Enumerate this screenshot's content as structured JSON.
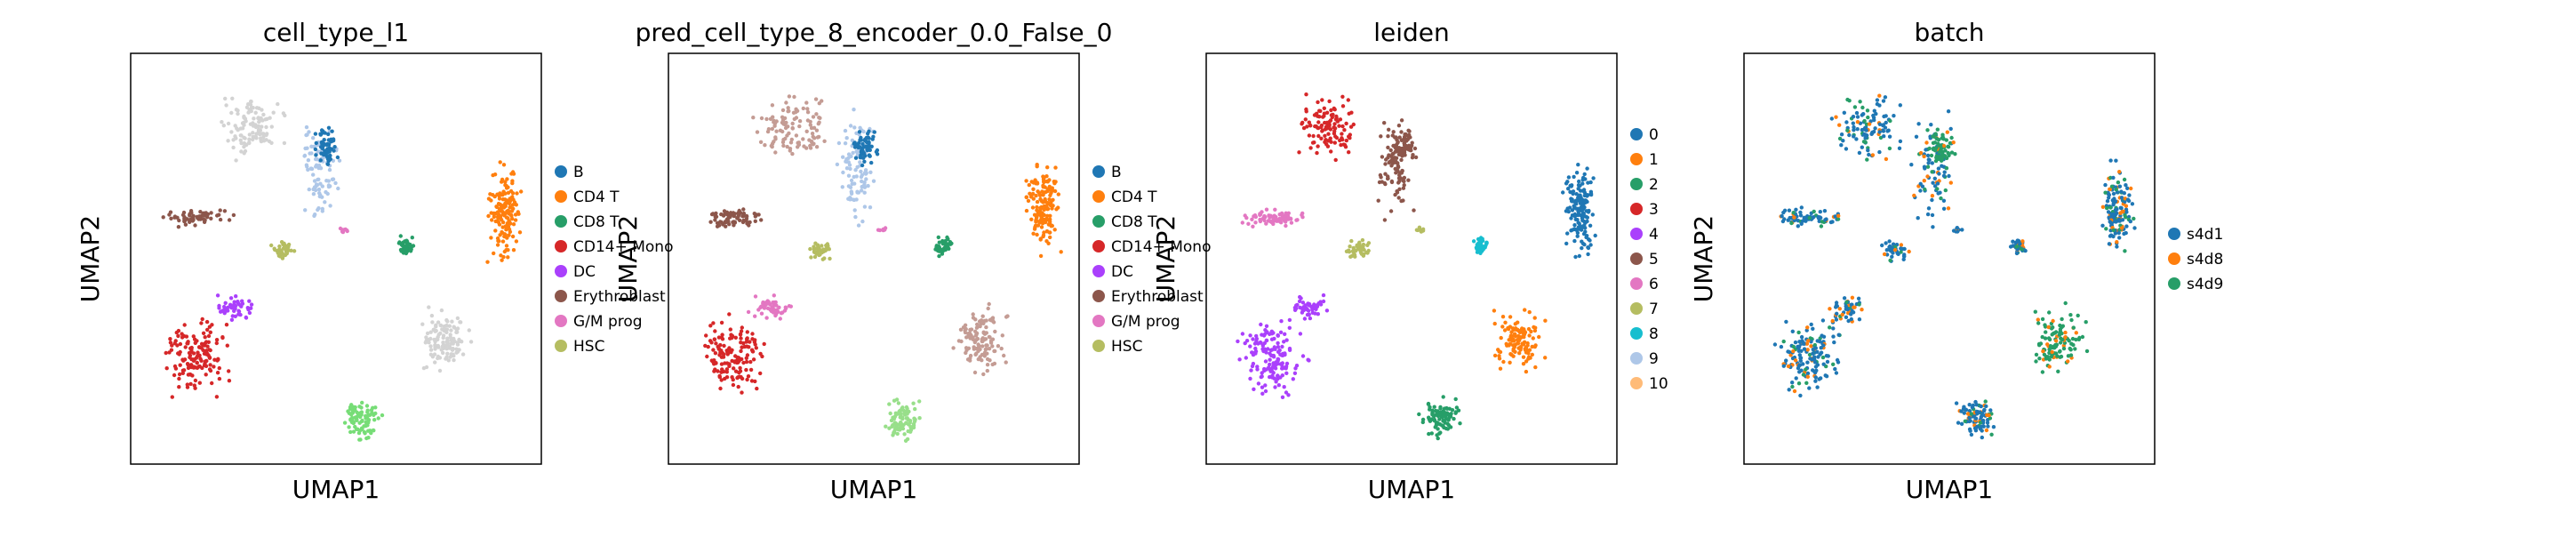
{
  "chart_data": [
    {
      "type": "scatter",
      "title": "cell_type_l1",
      "xlabel": "UMAP1",
      "ylabel": "UMAP2",
      "legend": "right",
      "grid": false,
      "legend_entries": [
        {
          "label": "B",
          "color": "#1f77b4"
        },
        {
          "label": "CD4 T",
          "color": "#ff7f0e"
        },
        {
          "label": "CD8 T",
          "color": "#279e68"
        },
        {
          "label": "CD14+ Mono",
          "color": "#d62728"
        },
        {
          "label": "DC",
          "color": "#aa40fc"
        },
        {
          "label": "Erythroblast",
          "color": "#8c564b"
        },
        {
          "label": "G/M prog",
          "color": "#e377c2"
        },
        {
          "label": "HSC",
          "color": "#b5bd61"
        }
      ]
    },
    {
      "type": "scatter",
      "title": "pred_cell_type_8_encoder_0.0_False_0",
      "xlabel": "UMAP1",
      "ylabel": "UMAP2",
      "legend": "right",
      "grid": false,
      "legend_entries": [
        {
          "label": "B",
          "color": "#1f77b4"
        },
        {
          "label": "CD4 T",
          "color": "#ff7f0e"
        },
        {
          "label": "CD8 T",
          "color": "#279e68"
        },
        {
          "label": "CD14+ Mono",
          "color": "#d62728"
        },
        {
          "label": "DC",
          "color": "#aa40fc"
        },
        {
          "label": "Erythroblast",
          "color": "#8c564b"
        },
        {
          "label": "G/M prog",
          "color": "#e377c2"
        },
        {
          "label": "HSC",
          "color": "#b5bd61"
        }
      ]
    },
    {
      "type": "scatter",
      "title": "leiden",
      "xlabel": "UMAP1",
      "ylabel": "UMAP2",
      "legend": "right",
      "grid": false,
      "legend_entries": [
        {
          "label": "0",
          "color": "#1f77b4"
        },
        {
          "label": "1",
          "color": "#ff7f0e"
        },
        {
          "label": "2",
          "color": "#279e68"
        },
        {
          "label": "3",
          "color": "#d62728"
        },
        {
          "label": "4",
          "color": "#aa40fc"
        },
        {
          "label": "5",
          "color": "#8c564b"
        },
        {
          "label": "6",
          "color": "#e377c2"
        },
        {
          "label": "7",
          "color": "#b5bd61"
        },
        {
          "label": "8",
          "color": "#17becf"
        },
        {
          "label": "9",
          "color": "#aec7e8"
        },
        {
          "label": "10",
          "color": "#ffbb78"
        }
      ]
    },
    {
      "type": "scatter",
      "title": "batch",
      "xlabel": "UMAP1",
      "ylabel": "UMAP2",
      "legend": "right",
      "grid": false,
      "legend_entries": [
        {
          "label": "s4d1",
          "color": "#1f77b4"
        },
        {
          "label": "s4d8",
          "color": "#ff7f0e"
        },
        {
          "label": "s4d9",
          "color": "#279e68"
        }
      ]
    }
  ]
}
